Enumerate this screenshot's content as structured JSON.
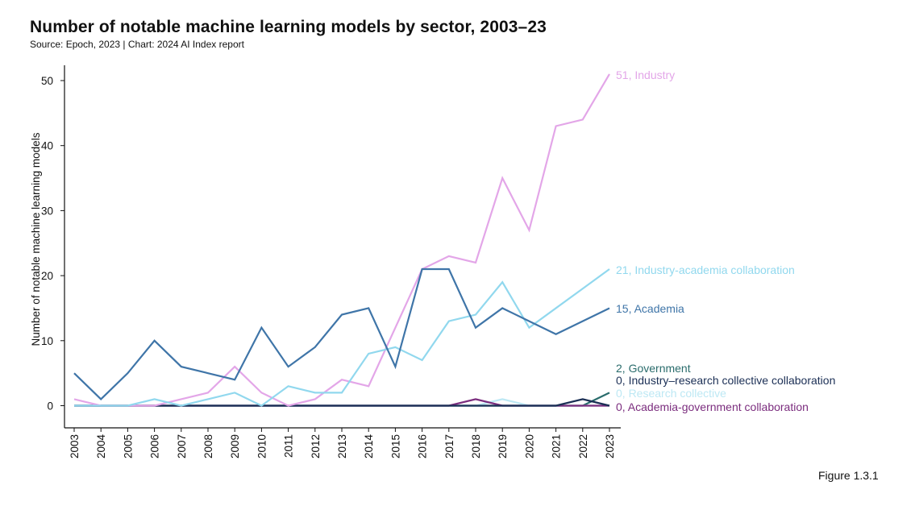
{
  "header": {
    "title": "Number of notable machine learning models by sector, 2003–23",
    "subtitle": "Source: Epoch, 2023 | Chart: 2024 AI Index report"
  },
  "footer": {
    "figure_label": "Figure 1.3.1"
  },
  "chart_data": {
    "type": "line",
    "title": "Number of notable machine learning models by sector, 2003–23",
    "subtitle": "Source: Epoch, 2023 | Chart: 2024 AI Index report",
    "xlabel": "",
    "ylabel": "Number of notable machine learning models",
    "x": [
      "2003",
      "2004",
      "2005",
      "2006",
      "2007",
      "2008",
      "2009",
      "2010",
      "2011",
      "2012",
      "2013",
      "2014",
      "2015",
      "2016",
      "2017",
      "2018",
      "2019",
      "2020",
      "2021",
      "2022",
      "2023"
    ],
    "ylim": [
      0,
      52
    ],
    "yticks": [
      0,
      10,
      20,
      30,
      40,
      50
    ],
    "grid": false,
    "legend": "end-of-line labels",
    "series": [
      {
        "name": "Industry",
        "color": "#e3a6e8",
        "end_label": "51, Industry",
        "values": [
          1,
          0,
          0,
          0,
          1,
          2,
          6,
          2,
          0,
          1,
          4,
          3,
          12,
          21,
          23,
          22,
          35,
          27,
          43,
          44,
          51
        ]
      },
      {
        "name": "Industry-academia collaboration",
        "color": "#91d8ee",
        "end_label": "21, Industry-academia collaboration",
        "values": [
          0,
          0,
          0,
          1,
          0,
          1,
          2,
          0,
          3,
          2,
          2,
          8,
          9,
          7,
          13,
          14,
          19,
          12,
          15,
          18,
          21
        ]
      },
      {
        "name": "Academia",
        "color": "#3f75a8",
        "end_label": "15, Academia",
        "values": [
          5,
          1,
          5,
          10,
          6,
          5,
          4,
          12,
          6,
          9,
          14,
          15,
          6,
          21,
          21,
          12,
          15,
          13,
          11,
          13,
          15
        ]
      },
      {
        "name": "Government",
        "color": "#2a6c6c",
        "end_label": "2, Government",
        "values": [
          0,
          0,
          0,
          0,
          0,
          0,
          0,
          0,
          0,
          0,
          0,
          0,
          0,
          0,
          0,
          0,
          0,
          0,
          0,
          0,
          2
        ]
      },
      {
        "name": "Industry–research collective collaboration",
        "color": "#1b2f55",
        "end_label": "0, Industry–research collective collaboration",
        "values": [
          0,
          0,
          0,
          0,
          0,
          0,
          0,
          0,
          0,
          0,
          0,
          0,
          0,
          0,
          0,
          0,
          0,
          0,
          0,
          1,
          0
        ]
      },
      {
        "name": "Research collective",
        "color": "#bde8f4",
        "end_label": "0, Research collective",
        "values": [
          0,
          0,
          0,
          0,
          0,
          0,
          0,
          0,
          0,
          0,
          0,
          0,
          0,
          0,
          0,
          0,
          1,
          0,
          0,
          0,
          0
        ]
      },
      {
        "name": "Academia-government collaboration",
        "color": "#7b2d7e",
        "end_label": "0, Academia-government collaboration",
        "values": [
          0,
          0,
          0,
          0,
          0,
          0,
          0,
          0,
          0,
          0,
          0,
          0,
          0,
          0,
          0,
          1,
          0,
          0,
          0,
          0,
          0
        ]
      }
    ]
  }
}
